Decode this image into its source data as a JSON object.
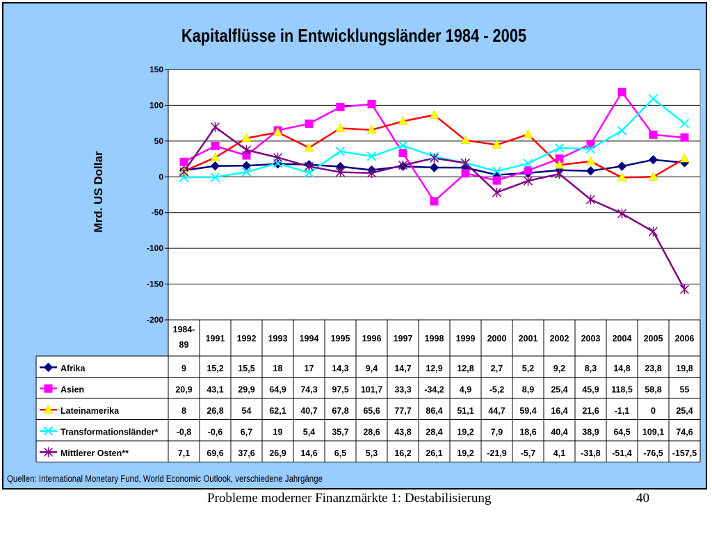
{
  "chart_data": {
    "type": "line",
    "title": "Kapitalflüsse in Entwicklungsländer 1984 - 2005",
    "ylabel": "Mrd. US Dollar",
    "xlabel": "",
    "ylim": [
      -200,
      150
    ],
    "yticks": [
      150,
      100,
      50,
      0,
      -50,
      -100,
      -150,
      -200
    ],
    "ytick_labels": [
      "150",
      "100",
      "50",
      "0",
      "-50",
      "-100",
      "-150",
      "-200"
    ],
    "grid": true,
    "legend": "data-table",
    "categories": [
      "1984-89",
      "1991",
      "1992",
      "1993",
      "1994",
      "1995",
      "1996",
      "1997",
      "1998",
      "1999",
      "2000",
      "2001",
      "2002",
      "2003",
      "2004",
      "2005",
      "2006"
    ],
    "category_display": [
      [
        "1984-",
        "89"
      ],
      [
        "1991"
      ],
      [
        "1992"
      ],
      [
        "1993"
      ],
      [
        "1994"
      ],
      [
        "1995"
      ],
      [
        "1996"
      ],
      [
        "1997"
      ],
      [
        "1998"
      ],
      [
        "1999"
      ],
      [
        "2000"
      ],
      [
        "2001"
      ],
      [
        "2002"
      ],
      [
        "2003"
      ],
      [
        "2004"
      ],
      [
        "2005"
      ],
      [
        "2006"
      ]
    ],
    "series": [
      {
        "name": "Afrika",
        "color": "#000080",
        "marker": "diamond",
        "values": [
          9,
          15.2,
          15.5,
          18,
          17,
          14.3,
          9.4,
          14.7,
          12.9,
          12.8,
          2.7,
          5.2,
          9.2,
          8.3,
          14.8,
          23.8,
          19.8
        ],
        "labels": [
          "9",
          "15,2",
          "15,5",
          "18",
          "17",
          "14,3",
          "9,4",
          "14,7",
          "12,9",
          "12,8",
          "2,7",
          "5,2",
          "9,2",
          "8,3",
          "14,8",
          "23,8",
          "19,8"
        ]
      },
      {
        "name": "Asien",
        "color": "#ff00ff",
        "marker": "square",
        "values": [
          20.9,
          43.1,
          29.9,
          64.9,
          74.3,
          97.5,
          101.7,
          33.3,
          -34.2,
          4.9,
          -5.2,
          8.9,
          25.4,
          45.9,
          118.5,
          58.8,
          55
        ],
        "labels": [
          "20,9",
          "43,1",
          "29,9",
          "64,9",
          "74,3",
          "97,5",
          "101,7",
          "33,3",
          "-34,2",
          "4,9",
          "-5,2",
          "8,9",
          "25,4",
          "45,9",
          "118,5",
          "58,8",
          "55"
        ]
      },
      {
        "name": "Lateinamerika",
        "color": "#ff0000",
        "marker_color": "#ffff00",
        "marker": "triangle",
        "values": [
          8,
          26.8,
          54,
          62.1,
          40.7,
          67.8,
          65.6,
          77.7,
          86.4,
          51.1,
          44.7,
          59.4,
          16.4,
          21.6,
          -1.1,
          0,
          25.4
        ],
        "labels": [
          "8",
          "26,8",
          "54",
          "62,1",
          "40,7",
          "67,8",
          "65,6",
          "77,7",
          "86,4",
          "51,1",
          "44,7",
          "59,4",
          "16,4",
          "21,6",
          "-1,1",
          "0",
          "25,4"
        ]
      },
      {
        "name": "Transformationsländer*",
        "color": "#00ffff",
        "marker": "x",
        "values": [
          -0.8,
          -0.6,
          6.7,
          19,
          5.4,
          35.7,
          28.6,
          43.8,
          28.4,
          19.2,
          7.9,
          18.6,
          40.4,
          38.9,
          64.5,
          109.1,
          74.6
        ],
        "labels": [
          "-0,8",
          "-0,6",
          "6,7",
          "19",
          "5,4",
          "35,7",
          "28,6",
          "43,8",
          "28,4",
          "19,2",
          "7,9",
          "18,6",
          "40,4",
          "38,9",
          "64,5",
          "109,1",
          "74,6"
        ]
      },
      {
        "name": "Mittlerer Osten**",
        "color": "#800080",
        "marker": "star",
        "values": [
          7.1,
          69.6,
          37.6,
          26.9,
          14.6,
          6.5,
          5.3,
          16.2,
          26.1,
          19.2,
          -21.9,
          -5.7,
          4.1,
          -31.8,
          -51.4,
          -76.5,
          -157.5
        ],
        "labels": [
          "7,1",
          "69,6",
          "37,6",
          "26,9",
          "14,6",
          "6,5",
          "5,3",
          "16,2",
          "26,1",
          "19,2",
          "-21,9",
          "-5,7",
          "4,1",
          "-31,8",
          "-51,4",
          "-76,5",
          "-157,5"
        ]
      }
    ],
    "source_note": "Quellen: International Monetary Fund, World Economic Outlook, verschiedene Jahrgänge"
  },
  "footer": {
    "title": "Probleme moderner Finanzmärkte 1: Destabilisierung",
    "page_number": "40"
  }
}
